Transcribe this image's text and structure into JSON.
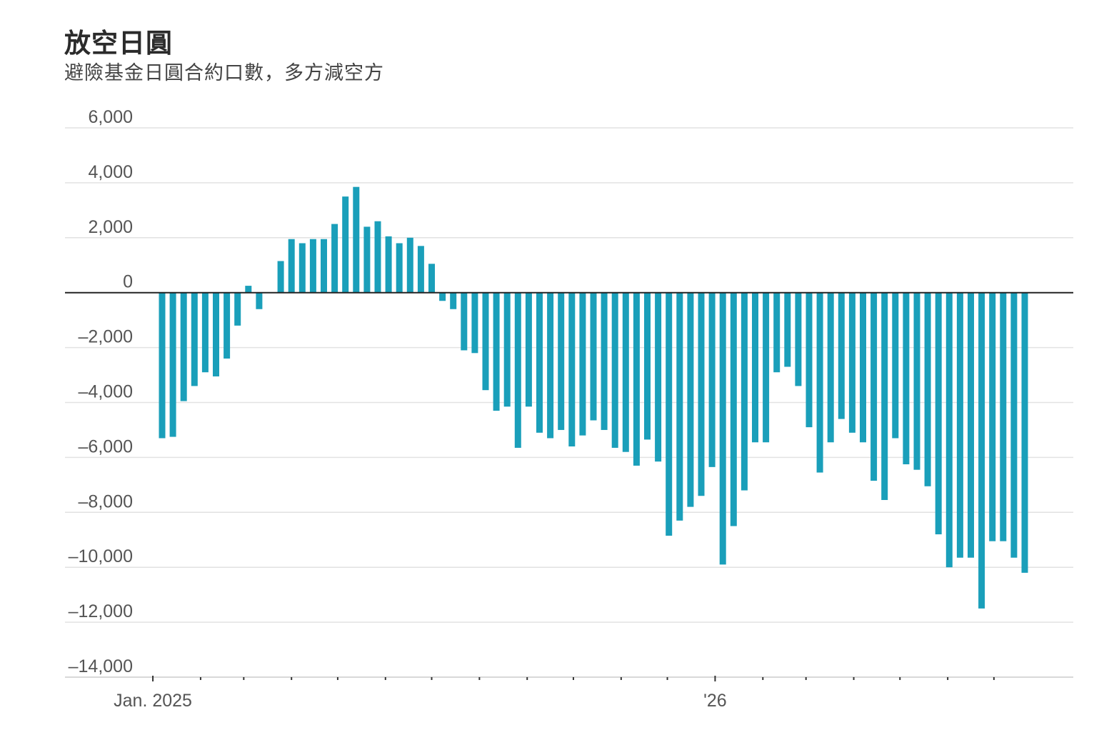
{
  "title": "放空日圓",
  "subtitle": "避險基金日圓合約口數，多方減空方",
  "chart_data": {
    "type": "bar",
    "title": "放空日圓",
    "subtitle": "避險基金日圓合約口數，多方減空方",
    "xlabel": "",
    "ylabel": "",
    "ylim": [
      -14000,
      6000
    ],
    "yticks": [
      6000,
      4000,
      2000,
      0,
      -2000,
      -4000,
      -6000,
      -8000,
      -10000,
      -12000,
      -14000
    ],
    "ytick_labels": [
      "6,000",
      "4,000",
      "2,000",
      "0",
      "–2,000",
      "–4,000",
      "–6,000",
      "–8,000",
      "–10,000",
      "–12,000",
      "–14,000"
    ],
    "x_start": "2025-01-07",
    "x_interval_days": 7,
    "xtick_labels": [
      {
        "date": "2025-01-01",
        "label": "Jan. 2025"
      },
      {
        "date": "2026-01-01",
        "label": "'26"
      }
    ],
    "grid": true,
    "color": "#1a9fba",
    "values": [
      -5300,
      -5250,
      -3950,
      -3400,
      -2900,
      -3050,
      -2400,
      -1200,
      250,
      -600,
      0,
      1150,
      1950,
      1800,
      1950,
      1950,
      2500,
      3500,
      3850,
      2400,
      2600,
      2050,
      1800,
      2000,
      1700,
      1050,
      -300,
      -600,
      -2100,
      -2200,
      -3550,
      -4300,
      -4150,
      -5650,
      -4150,
      -5100,
      -5300,
      -5000,
      -5600,
      -5200,
      -4650,
      -5000,
      -5650,
      -5800,
      -6300,
      -5350,
      -6150,
      -8850,
      -8300,
      -7800,
      -7400,
      -6350,
      -9900,
      -8500,
      -7200,
      -5450,
      -5450,
      -2900,
      -2700,
      -3400,
      -4900,
      -6550,
      -5450,
      -4600,
      -5100,
      -5450,
      -6850,
      -7550,
      -5300,
      -6250,
      -6450,
      -7050,
      -8800,
      -10000,
      -9650,
      -9650,
      -11500,
      -9050,
      -9050,
      -9650,
      -10200
    ]
  }
}
